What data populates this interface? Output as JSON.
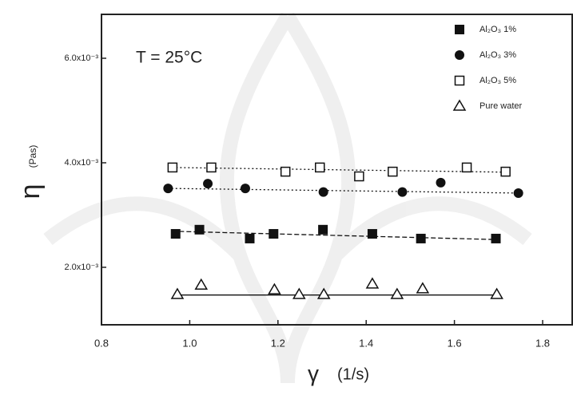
{
  "chart_data": {
    "type": "scatter",
    "annotation": "T = 25°C",
    "xlabel": "γ",
    "xlabel_unit": "(1/s)",
    "ylabel": "η",
    "ylabel_unit": "(Pas)",
    "xlim": [
      0.8,
      1.867
    ],
    "ylim": [
      0.0009,
      0.00684
    ],
    "xticks": [
      0.8,
      {
        "value": 1,
        "label": "1.0"
      },
      1.2,
      1.4,
      1.6,
      1.8
    ],
    "yticks": [
      {
        "value": 0.002,
        "label": "2.0x10⁻³"
      },
      {
        "value": 0.004,
        "label": "4.0x10⁻³"
      },
      {
        "value": 0.006,
        "label": "6.0x10⁻³"
      }
    ],
    "legend": "top-right",
    "series": [
      {
        "name": "Al₂O₃ 1%",
        "color": "#111111",
        "marker": "square-filled",
        "x": [
          0.968,
          1.022,
          1.136,
          1.19,
          1.302,
          1.414,
          1.524,
          1.694
        ],
        "values": [
          0.00264,
          0.00272,
          0.00255,
          0.00264,
          0.00272,
          0.00264,
          0.00255,
          0.00255
        ],
        "fit_x": [
          0.96,
          1.7
        ],
        "fit_values": [
          0.00269,
          0.00253
        ],
        "fit_style": "dashed"
      },
      {
        "name": "Al₂O₃ 3%",
        "color": "#111111",
        "marker": "circle-filled",
        "x": [
          0.951,
          1.041,
          1.126,
          1.303,
          1.482,
          1.569,
          1.745
        ],
        "values": [
          0.00351,
          0.0036,
          0.00351,
          0.00344,
          0.00344,
          0.00362,
          0.00342
        ],
        "fit_x": [
          0.95,
          1.75
        ],
        "fit_values": [
          0.00351,
          0.00342
        ],
        "fit_style": "dotted"
      },
      {
        "name": "Al₂O₃ 5%",
        "color": "#111111",
        "marker": "square-open",
        "x": [
          0.961,
          1.049,
          1.217,
          1.295,
          1.384,
          1.46,
          1.628,
          1.716
        ],
        "values": [
          0.00391,
          0.00391,
          0.00383,
          0.00391,
          0.00374,
          0.00383,
          0.00391,
          0.00383
        ],
        "fit_x": [
          0.96,
          1.72
        ],
        "fit_values": [
          0.00391,
          0.00382
        ],
        "fit_style": "dotted"
      },
      {
        "name": "Pure water",
        "color": "#111111",
        "marker": "triangle-open",
        "x": [
          0.972,
          1.026,
          1.192,
          1.248,
          1.304,
          1.414,
          1.47,
          1.528,
          1.696
        ],
        "values": [
          0.00148,
          0.00166,
          0.00157,
          0.00148,
          0.00148,
          0.00168,
          0.00148,
          0.00159,
          0.00148
        ],
        "fit_x": [
          0.97,
          1.7
        ],
        "fit_values": [
          0.00147,
          0.00147
        ],
        "fit_style": "solid"
      }
    ]
  }
}
